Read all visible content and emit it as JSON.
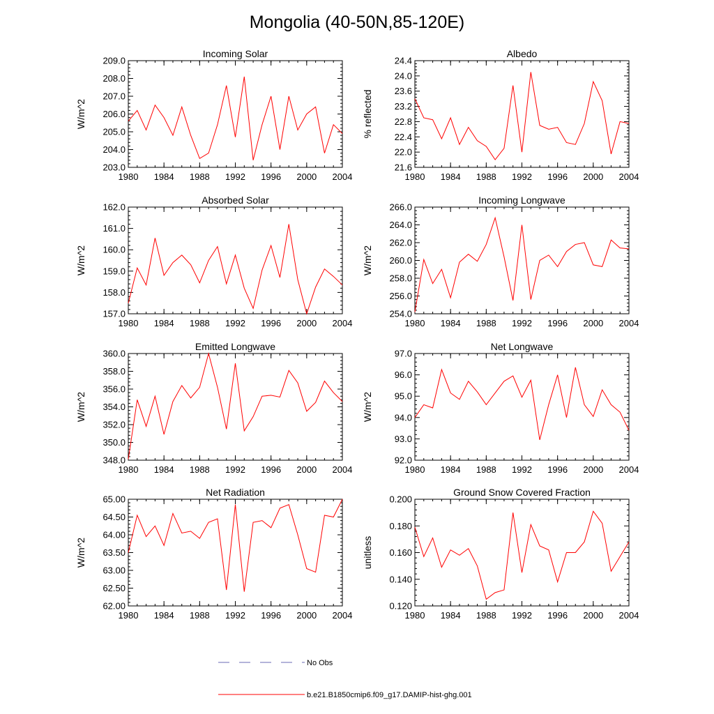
{
  "page": {
    "title": "Mongolia (40-50N,85-120E)"
  },
  "colors": {
    "series": "#ff0000",
    "obs": "#6a6ab4",
    "axes": "#000000"
  },
  "legend": [
    {
      "label": "No Obs",
      "style": "dashed",
      "color": "#6a6ab4"
    },
    {
      "label": "b.e21.B1850cmip6.f09_g17.DAMIP-hist-ghg.001",
      "style": "solid",
      "color": "#ff0000"
    }
  ],
  "chart_data": [
    {
      "type": "line",
      "title": "Incoming Solar",
      "ylabel": "W/m^2",
      "xlim": [
        1980,
        2004
      ],
      "ylim": [
        203.0,
        209.0
      ],
      "xticks": [
        1980,
        1984,
        1988,
        1992,
        1996,
        2000,
        2004
      ],
      "yticks": [
        "203.0",
        "204.0",
        "205.0",
        "206.0",
        "207.0",
        "208.0",
        "209.0"
      ],
      "x": [
        1980,
        1981,
        1982,
        1983,
        1984,
        1985,
        1986,
        1987,
        1988,
        1989,
        1990,
        1991,
        1992,
        1993,
        1994,
        1995,
        1996,
        1997,
        1998,
        1999,
        2000,
        2001,
        2002,
        2003,
        2004
      ],
      "series": [
        {
          "name": "b.e21.B1850cmip6.f09_g17.DAMIP-hist-ghg.001",
          "values": [
            205.6,
            206.2,
            205.1,
            206.5,
            205.8,
            204.8,
            206.4,
            204.8,
            203.5,
            203.8,
            205.4,
            207.6,
            204.7,
            208.1,
            203.4,
            205.4,
            207.0,
            204.0,
            207.0,
            205.1,
            206.0,
            206.4,
            203.8,
            205.4,
            204.9
          ]
        }
      ]
    },
    {
      "type": "line",
      "title": "Albedo",
      "ylabel": "% reflected",
      "xlim": [
        1980,
        2004
      ],
      "ylim": [
        21.6,
        24.4
      ],
      "xticks": [
        1980,
        1984,
        1988,
        1992,
        1996,
        2000,
        2004
      ],
      "yticks": [
        "21.6",
        "22.0",
        "22.4",
        "22.8",
        "23.2",
        "23.6",
        "24.0",
        "24.4"
      ],
      "x": [
        1980,
        1981,
        1982,
        1983,
        1984,
        1985,
        1986,
        1987,
        1988,
        1989,
        1990,
        1991,
        1992,
        1993,
        1994,
        1995,
        1996,
        1997,
        1998,
        1999,
        2000,
        2001,
        2002,
        2003,
        2004
      ],
      "series": [
        {
          "name": "b.e21.B1850cmip6.f09_g17.DAMIP-hist-ghg.001",
          "values": [
            23.4,
            22.9,
            22.85,
            22.35,
            22.9,
            22.2,
            22.65,
            22.3,
            22.15,
            21.8,
            22.1,
            23.75,
            22.0,
            24.1,
            22.7,
            22.6,
            22.65,
            22.25,
            22.2,
            22.75,
            23.85,
            23.35,
            21.95,
            22.8,
            22.75
          ]
        }
      ]
    },
    {
      "type": "line",
      "title": "Absorbed Solar",
      "ylabel": "W/m^2",
      "xlim": [
        1980,
        2004
      ],
      "ylim": [
        157.0,
        162.0
      ],
      "xticks": [
        1980,
        1984,
        1988,
        1992,
        1996,
        2000,
        2004
      ],
      "yticks": [
        "157.0",
        "158.0",
        "159.0",
        "160.0",
        "161.0",
        "162.0"
      ],
      "x": [
        1980,
        1981,
        1982,
        1983,
        1984,
        1985,
        1986,
        1987,
        1988,
        1989,
        1990,
        1991,
        1992,
        1993,
        1994,
        1995,
        1996,
        1997,
        1998,
        1999,
        2000,
        2001,
        2002,
        2003,
        2004
      ],
      "series": [
        {
          "name": "b.e21.B1850cmip6.f09_g17.DAMIP-hist-ghg.001",
          "values": [
            157.5,
            159.15,
            158.35,
            160.55,
            158.8,
            159.4,
            159.75,
            159.3,
            158.45,
            159.5,
            160.15,
            158.4,
            159.75,
            158.2,
            157.25,
            159.05,
            160.2,
            158.7,
            161.2,
            158.6,
            157.0,
            158.25,
            159.1,
            158.75,
            158.35
          ]
        }
      ]
    },
    {
      "type": "line",
      "title": "Incoming Longwave",
      "ylabel": "W/m^2",
      "xlim": [
        1980,
        2004
      ],
      "ylim": [
        254.0,
        266.0
      ],
      "xticks": [
        1980,
        1984,
        1988,
        1992,
        1996,
        2000,
        2004
      ],
      "yticks": [
        "254.0",
        "256.0",
        "258.0",
        "260.0",
        "262.0",
        "264.0",
        "266.0"
      ],
      "x": [
        1980,
        1981,
        1982,
        1983,
        1984,
        1985,
        1986,
        1987,
        1988,
        1989,
        1990,
        1991,
        1992,
        1993,
        1994,
        1995,
        1996,
        1997,
        1998,
        1999,
        2000,
        2001,
        2002,
        2003,
        2004
      ],
      "series": [
        {
          "name": "b.e21.B1850cmip6.f09_g17.DAMIP-hist-ghg.001",
          "values": [
            254.2,
            260.1,
            257.4,
            259.0,
            255.8,
            259.8,
            260.7,
            259.9,
            261.8,
            264.8,
            260.4,
            255.5,
            264.0,
            255.6,
            260.0,
            260.6,
            259.3,
            261.0,
            261.8,
            262.0,
            259.5,
            259.3,
            262.3,
            261.4,
            261.3
          ]
        }
      ]
    },
    {
      "type": "line",
      "title": "Emitted Longwave",
      "ylabel": "W/m^2",
      "xlim": [
        1980,
        2004
      ],
      "ylim": [
        348.0,
        360.0
      ],
      "xticks": [
        1980,
        1984,
        1988,
        1992,
        1996,
        2000,
        2004
      ],
      "yticks": [
        "348.0",
        "350.0",
        "352.0",
        "354.0",
        "356.0",
        "358.0",
        "360.0"
      ],
      "x": [
        1980,
        1981,
        1982,
        1983,
        1984,
        1985,
        1986,
        1987,
        1988,
        1989,
        1990,
        1991,
        1992,
        1993,
        1994,
        1995,
        1996,
        1997,
        1998,
        1999,
        2000,
        2001,
        2002,
        2003,
        2004
      ],
      "series": [
        {
          "name": "b.e21.B1850cmip6.f09_g17.DAMIP-hist-ghg.001",
          "values": [
            348.1,
            354.8,
            351.8,
            355.2,
            350.9,
            354.6,
            356.4,
            355.0,
            356.2,
            360.0,
            356.2,
            351.5,
            358.9,
            351.3,
            352.9,
            355.2,
            355.3,
            355.1,
            358.1,
            356.7,
            353.5,
            354.5,
            356.9,
            355.6,
            354.6
          ]
        }
      ]
    },
    {
      "type": "line",
      "title": "Net Longwave",
      "ylabel": "W/m^2",
      "xlim": [
        1980,
        2004
      ],
      "ylim": [
        92.0,
        97.0
      ],
      "xticks": [
        1980,
        1984,
        1988,
        1992,
        1996,
        2000,
        2004
      ],
      "yticks": [
        "92.0",
        "93.0",
        "94.0",
        "95.0",
        "96.0",
        "97.0"
      ],
      "x": [
        1980,
        1981,
        1982,
        1983,
        1984,
        1985,
        1986,
        1987,
        1988,
        1989,
        1990,
        1991,
        1992,
        1993,
        1994,
        1995,
        1996,
        1997,
        1998,
        1999,
        2000,
        2001,
        2002,
        2003,
        2004
      ],
      "series": [
        {
          "name": "b.e21.B1850cmip6.f09_g17.DAMIP-hist-ghg.001",
          "values": [
            94.0,
            94.6,
            94.45,
            96.25,
            95.15,
            94.85,
            95.7,
            95.2,
            94.6,
            95.15,
            95.7,
            95.95,
            94.95,
            95.75,
            92.95,
            94.6,
            96.0,
            94.0,
            96.35,
            94.6,
            94.05,
            95.3,
            94.6,
            94.25,
            93.4
          ]
        }
      ]
    },
    {
      "type": "line",
      "title": "Net Radiation",
      "ylabel": "W/m^2",
      "xlim": [
        1980,
        2004
      ],
      "ylim": [
        62.0,
        65.0
      ],
      "xticks": [
        1980,
        1984,
        1988,
        1992,
        1996,
        2000,
        2004
      ],
      "yticks": [
        "62.00",
        "62.50",
        "63.00",
        "63.50",
        "64.00",
        "64.50",
        "65.00"
      ],
      "x": [
        1980,
        1981,
        1982,
        1983,
        1984,
        1985,
        1986,
        1987,
        1988,
        1989,
        1990,
        1991,
        1992,
        1993,
        1994,
        1995,
        1996,
        1997,
        1998,
        1999,
        2000,
        2001,
        2002,
        2003,
        2004
      ],
      "series": [
        {
          "name": "b.e21.B1850cmip6.f09_g17.DAMIP-hist-ghg.001",
          "values": [
            63.5,
            64.55,
            63.95,
            64.25,
            63.7,
            64.6,
            64.05,
            64.1,
            63.9,
            64.35,
            64.45,
            62.45,
            64.85,
            62.4,
            64.35,
            64.4,
            64.2,
            64.75,
            64.85,
            64.0,
            63.05,
            62.95,
            64.55,
            64.5,
            65.0
          ]
        }
      ]
    },
    {
      "type": "line",
      "title": "Ground Snow Covered Fraction",
      "ylabel": "unitless",
      "xlim": [
        1980,
        2004
      ],
      "ylim": [
        0.12,
        0.2
      ],
      "xticks": [
        1980,
        1984,
        1988,
        1992,
        1996,
        2000,
        2004
      ],
      "yticks": [
        "0.120",
        "0.140",
        "0.160",
        "0.180",
        "0.200"
      ],
      "x": [
        1980,
        1981,
        1982,
        1983,
        1984,
        1985,
        1986,
        1987,
        1988,
        1989,
        1990,
        1991,
        1992,
        1993,
        1994,
        1995,
        1996,
        1997,
        1998,
        1999,
        2000,
        2001,
        2002,
        2003,
        2004
      ],
      "series": [
        {
          "name": "b.e21.B1850cmip6.f09_g17.DAMIP-hist-ghg.001",
          "values": [
            0.179,
            0.157,
            0.171,
            0.149,
            0.162,
            0.158,
            0.163,
            0.15,
            0.125,
            0.13,
            0.132,
            0.19,
            0.145,
            0.181,
            0.165,
            0.162,
            0.138,
            0.16,
            0.16,
            0.168,
            0.191,
            0.182,
            0.146,
            0.157,
            0.168
          ]
        }
      ]
    }
  ]
}
